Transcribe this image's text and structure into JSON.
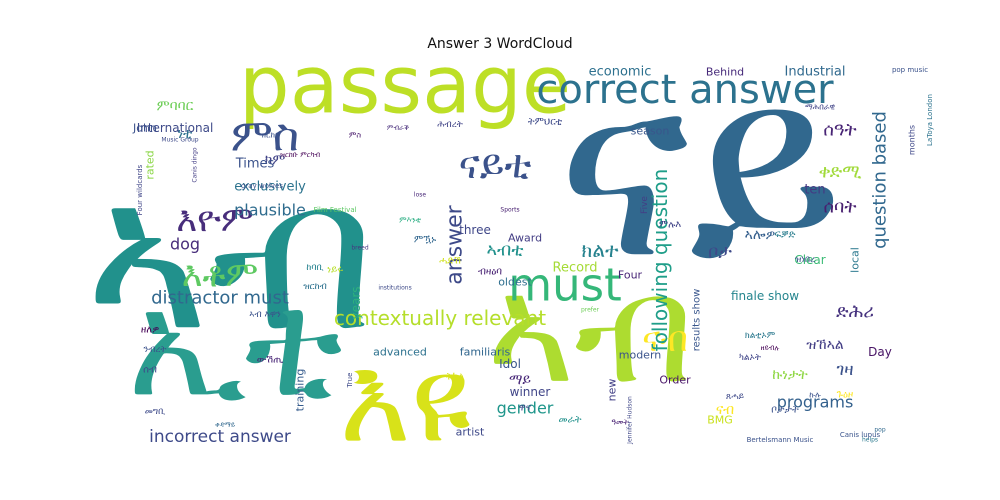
{
  "chart_data": {
    "type": "wordcloud",
    "title": "Answer 3 WordCloud",
    "palette": "viridis",
    "words": [
      {
        "text": "ናይ",
        "weight": 100,
        "color": "#31688e"
      },
      {
        "text": "ኣብ",
        "weight": 95,
        "color": "#21918c"
      },
      {
        "text": "ኣብ",
        "weight": 70,
        "color": "#addc30"
      },
      {
        "text": "passage",
        "weight": 65,
        "color": "#bddf26"
      },
      {
        "text": "ኢቲ",
        "weight": 63,
        "color": "#2a9d8f"
      },
      {
        "text": "እዩ",
        "weight": 58,
        "color": "#d8e219"
      },
      {
        "text": "correct answer",
        "weight": 38,
        "color": "#2c728e"
      },
      {
        "text": "must",
        "weight": 35,
        "color": "#35b779"
      },
      {
        "text": "ምስ",
        "weight": 32,
        "color": "#3b528b"
      },
      {
        "text": "እዮም",
        "weight": 28,
        "color": "#472d7b"
      },
      {
        "text": "ናይቲ",
        "weight": 28,
        "color": "#3b528b"
      },
      {
        "text": "እቶም",
        "weight": 26,
        "color": "#5ec962"
      },
      {
        "text": "ናብ",
        "weight": 24,
        "color": "#fde725"
      },
      {
        "text": "following question",
        "weight": 18,
        "color": "#1f9e89"
      },
      {
        "text": "question based",
        "weight": 16,
        "color": "#31688e"
      },
      {
        "text": "contextually relevant",
        "weight": 16,
        "color": "#b5de2b"
      },
      {
        "text": "distractor must",
        "weight": 15,
        "color": "#31688e"
      },
      {
        "text": "incorrect answer",
        "weight": 14,
        "color": "#3e4a89"
      },
      {
        "text": "answer",
        "weight": 14,
        "color": "#3e4a89"
      },
      {
        "text": "ሰዓት",
        "weight": 13,
        "color": "#482475"
      },
      {
        "text": "ቀድሚ",
        "weight": 13,
        "color": "#a0da39"
      },
      {
        "text": "ሰባት",
        "weight": 13,
        "color": "#481f70"
      },
      {
        "text": "ቦታ",
        "weight": 13,
        "color": "#3e4989"
      },
      {
        "text": "ድሕሪ",
        "weight": 13,
        "color": "#46327e"
      },
      {
        "text": "ክልተ",
        "weight": 12,
        "color": "#26828e"
      },
      {
        "text": "ኣብቲ",
        "weight": 12,
        "color": "#21918c"
      },
      {
        "text": "plausible",
        "weight": 12,
        "color": "#2f6c8e"
      },
      {
        "text": "programs",
        "weight": 12,
        "color": "#34618d"
      },
      {
        "text": "gender",
        "weight": 12,
        "color": "#1f968b"
      },
      {
        "text": "dog",
        "weight": 12,
        "color": "#472c7a"
      },
      {
        "text": "ናብ",
        "weight": 12,
        "color": "#fde725"
      },
      {
        "text": "ማይ",
        "weight": 10,
        "color": "#482878"
      },
      {
        "text": "ምባባር",
        "weight": 10,
        "color": "#6ece58"
      },
      {
        "text": "ነቲ",
        "weight": 10,
        "color": "#2d708e"
      },
      {
        "text": "ገዛ",
        "weight": 10,
        "color": "#3b528b"
      },
      {
        "text": "ዝኸኣል",
        "weight": 10,
        "color": "#433e85"
      },
      {
        "text": "ኣሎዎ",
        "weight": 9,
        "color": "#355f8d"
      },
      {
        "text": "ኩነታት",
        "weight": 9,
        "color": "#8fd744"
      },
      {
        "text": "ክም",
        "weight": 9,
        "color": "#404387"
      },
      {
        "text": "economic",
        "weight": 9,
        "color": "#2d708e"
      },
      {
        "text": "Industrial",
        "weight": 9,
        "color": "#30698e"
      },
      {
        "text": "International",
        "weight": 9,
        "color": "#3e4a89"
      },
      {
        "text": "Times",
        "weight": 9,
        "color": "#3b528b"
      },
      {
        "text": "exclusively",
        "weight": 9,
        "color": "#2c738e"
      },
      {
        "text": "ten",
        "weight": 9,
        "color": "#443983"
      },
      {
        "text": "three",
        "weight": 9,
        "color": "#3f4788"
      },
      {
        "text": "Record",
        "weight": 9,
        "color": "#a5db36"
      },
      {
        "text": "finale show",
        "weight": 9,
        "color": "#25858e"
      },
      {
        "text": "years",
        "weight": 9,
        "color": "#2db27d"
      },
      {
        "text": "Idol",
        "weight": 8,
        "color": "#39568c"
      },
      {
        "text": "winner",
        "weight": 8,
        "color": "#404588"
      },
      {
        "text": "Day",
        "weight": 8,
        "color": "#471365"
      },
      {
        "text": "Clear",
        "weight": 8,
        "color": "#3bbb75"
      },
      {
        "text": "Four",
        "weight": 8,
        "color": "#482677"
      },
      {
        "text": "Award",
        "weight": 8,
        "color": "#433d84"
      },
      {
        "text": "oldest",
        "weight": 7,
        "color": "#2e6e8e"
      },
      {
        "text": "modern",
        "weight": 7,
        "color": "#3a538b"
      },
      {
        "text": "advanced",
        "weight": 7,
        "color": "#2c718e"
      },
      {
        "text": "familiaris",
        "weight": 7,
        "color": "#31668e"
      },
      {
        "text": "Order",
        "weight": 7,
        "color": "#481467"
      },
      {
        "text": "BMG",
        "weight": 7,
        "color": "#cae11f"
      },
      {
        "text": "artist",
        "weight": 7,
        "color": "#3e4989"
      },
      {
        "text": "season",
        "weight": 7,
        "color": "#39568c"
      },
      {
        "text": "John",
        "weight": 7,
        "color": "#3b518b"
      },
      {
        "text": "Behind",
        "weight": 7,
        "color": "#472a7a"
      },
      {
        "text": "training",
        "weight": 7,
        "color": "#365c8d"
      },
      {
        "text": "rated",
        "weight": 7,
        "color": "#8bd646"
      },
      {
        "text": "local",
        "weight": 7,
        "color": "#2a788e"
      },
      {
        "text": "results show",
        "weight": 7,
        "color": "#39568c"
      },
      {
        "text": "new",
        "weight": 7,
        "color": "#424086"
      },
      {
        "text": "Five",
        "weight": 6,
        "color": "#433e85"
      },
      {
        "text": "months",
        "weight": 6,
        "color": "#3f4889"
      },
      {
        "text": "LaToya London",
        "weight": 5,
        "color": "#2c738e"
      },
      {
        "text": "pop music",
        "weight": 5,
        "color": "#3b528b"
      },
      {
        "text": "Music Group",
        "weight": 5,
        "color": "#3e4a89"
      },
      {
        "text": "Canis dingo",
        "weight": 5,
        "color": "#433e85"
      },
      {
        "text": "Four wildcards",
        "weight": 5,
        "color": "#404688"
      },
      {
        "text": "gray wolves",
        "weight": 6,
        "color": "#3b528b"
      },
      {
        "text": "Film Festival",
        "weight": 5,
        "color": "#5cc863"
      },
      {
        "text": "Jennifer Hudson",
        "weight": 5,
        "color": "#3f4788"
      },
      {
        "text": "Bertelsmann Music",
        "weight": 5,
        "color": "#3b528b"
      },
      {
        "text": "Canis lupus",
        "weight": 5,
        "color": "#3a548c"
      },
      {
        "text": "True",
        "weight": 5,
        "color": "#3e4a89"
      },
      {
        "text": "Sports",
        "weight": 4,
        "color": "#482071"
      },
      {
        "text": "breed",
        "weight": 4,
        "color": "#453781"
      },
      {
        "text": "lose",
        "weight": 4,
        "color": "#482878"
      },
      {
        "text": "institutions",
        "weight": 4,
        "color": "#3e4a89"
      },
      {
        "text": "prefer",
        "weight": 4,
        "color": "#6ece58"
      },
      {
        "text": "helps",
        "weight": 4,
        "color": "#2a788e"
      },
      {
        "text": "pop",
        "weight": 4,
        "color": "#30698e"
      },
      {
        "text": "ዝርከባ",
        "weight": 7,
        "color": "#3b528b"
      },
      {
        "text": "ምስ",
        "weight": 7,
        "color": "#481a6c"
      },
      {
        "text": "ትምህርቲ",
        "weight": 8,
        "color": "#3e4a89"
      },
      {
        "text": "ከባቢ",
        "weight": 8,
        "color": "#26828e"
      },
      {
        "text": "ዝርከብ",
        "weight": 8,
        "color": "#2d718e"
      },
      {
        "text": "ብዛዕባ",
        "weight": 8,
        "color": "#482173"
      },
      {
        "text": "ሓድሽ",
        "weight": 8,
        "color": "#d0e11c"
      },
      {
        "text": "ምሉእ",
        "weight": 8,
        "color": "#404387"
      },
      {
        "text": "ፍቓድ",
        "weight": 8,
        "color": "#287d8e"
      },
      {
        "text": "ምዃኑ",
        "weight": 7,
        "color": "#31668e"
      },
      {
        "text": "ቦታታት",
        "weight": 7,
        "color": "#3b528b"
      },
      {
        "text": "ውሽጢ",
        "weight": 7,
        "color": "#482576"
      },
      {
        "text": "ነይሩ",
        "weight": 7,
        "color": "#b8de29"
      },
      {
        "text": "ዘለዎ",
        "weight": 8,
        "color": "#440154"
      },
      {
        "text": "ሰብ",
        "weight": 8,
        "color": "#3e4989"
      },
      {
        "text": "ኣብ እዋን",
        "weight": 6,
        "color": "#3b528b"
      },
      {
        "text": "መራት",
        "weight": 7,
        "color": "#21918c"
      },
      {
        "text": "ዋና",
        "weight": 7,
        "color": "#3f4788"
      },
      {
        "text": "ክልቲኦም",
        "weight": 6,
        "color": "#2a788e"
      },
      {
        "text": "ጉዕዞ",
        "weight": 7,
        "color": "#fde725"
      },
      {
        "text": "ቀዳማይ",
        "weight": 5,
        "color": "#31688e"
      },
      {
        "text": "ካልኦት",
        "weight": 6,
        "color": "#404588"
      },
      {
        "text": "ንብረት",
        "weight": 6,
        "color": "#3b528b"
      },
      {
        "text": "መግቢ",
        "weight": 6,
        "color": "#3e4a89"
      },
      {
        "text": "ዝርከቡ ምርካብ",
        "weight": 5,
        "color": "#440154"
      },
      {
        "text": "ምብራቕ",
        "weight": 5,
        "color": "#472c7a"
      },
      {
        "text": "ሕብረት",
        "weight": 6,
        "color": "#414487"
      },
      {
        "text": "ምእንቲ",
        "weight": 5,
        "color": "#27ad81"
      },
      {
        "text": "ኩሉ",
        "weight": 5,
        "color": "#3b528b"
      },
      {
        "text": "ዓመት",
        "weight": 5,
        "color": "#482173"
      },
      {
        "text": "ትካል",
        "weight": 7,
        "color": "#d8e219"
      },
      {
        "text": "ጸሓይ",
        "weight": 6,
        "color": "#3e4989"
      },
      {
        "text": "ማሕበራዊ",
        "weight": 5,
        "color": "#404387"
      },
      {
        "text": "ዝነበረ",
        "weight": 6,
        "color": "#3b528b"
      },
      {
        "text": "ዘይብሉ",
        "weight": 5,
        "color": "#440154"
      }
    ]
  }
}
